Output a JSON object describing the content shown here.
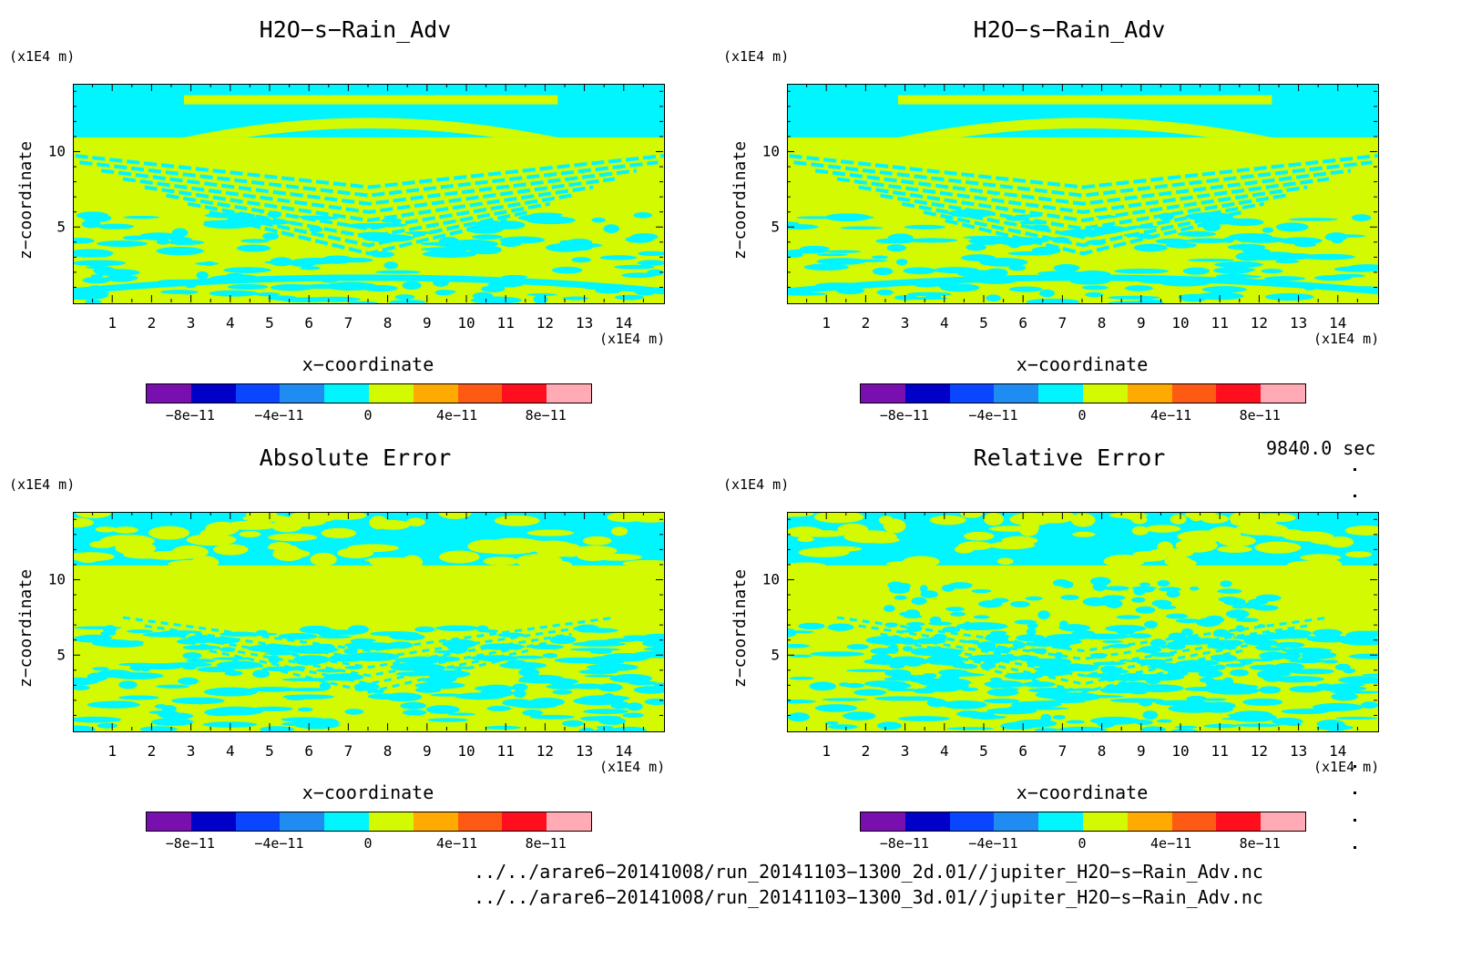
{
  "panels": [
    {
      "title": "H2O−s−Rain_Adv"
    },
    {
      "title": "H2O−s−Rain_Adv"
    },
    {
      "title": "Absolute Error"
    },
    {
      "title": "Relative Error"
    }
  ],
  "axes": {
    "z_unit": "(x1E4 m)",
    "x_unit": "(x1E4 m)",
    "ylabel": "z−coordinate",
    "xlabel": "x−coordinate",
    "x_ticks": [
      "1",
      "2",
      "3",
      "4",
      "5",
      "6",
      "7",
      "8",
      "9",
      "10",
      "11",
      "12",
      "13",
      "14"
    ],
    "y_ticks": [
      "10",
      "5"
    ]
  },
  "colorbar": {
    "colors": [
      "#7a0fb0",
      "#0000c8",
      "#0a46ff",
      "#1e8cf0",
      "#00f5ff",
      "#d3fa00",
      "#ffaa00",
      "#ff5a14",
      "#ff0f1e",
      "#ffaab4"
    ],
    "tick_labels": [
      "−8e−11",
      "−4e−11",
      "0",
      "4e−11",
      "8e−11"
    ]
  },
  "timestamp": "9840.0 sec",
  "file_paths": [
    "../../arare6−20141008/run_20141103−1300_2d.01//jupiter_H2O−s−Rain_Adv.nc",
    "../../arare6−20141008/run_20141103−1300_3d.01//jupiter_H2O−s−Rain_Adv.nc"
  ],
  "chart_data": [
    {
      "type": "heatmap",
      "title": "H2O−s−Rain_Adv",
      "xlabel": "x−coordinate",
      "ylabel": "z−coordinate",
      "xlim": [
        0,
        15
      ],
      "ylim": [
        0,
        14.5
      ],
      "x_unit": "(x1E4 m)",
      "z_unit": "(x1E4 m)",
      "colorbar_range": [
        -1e-10,
        1e-10
      ],
      "dominant_values": [
        "0 to 2e-11",
        "-2e-11 to 0"
      ]
    },
    {
      "type": "heatmap",
      "title": "H2O−s−Rain_Adv",
      "xlabel": "x−coordinate",
      "ylabel": "z−coordinate",
      "xlim": [
        0,
        15
      ],
      "ylim": [
        0,
        14.5
      ],
      "x_unit": "(x1E4 m)",
      "z_unit": "(x1E4 m)",
      "colorbar_range": [
        -1e-10,
        1e-10
      ],
      "dominant_values": [
        "0 to 2e-11",
        "-2e-11 to 0"
      ]
    },
    {
      "type": "heatmap",
      "title": "Absolute Error",
      "xlabel": "x−coordinate",
      "ylabel": "z−coordinate",
      "xlim": [
        0,
        15
      ],
      "ylim": [
        0,
        14.5
      ],
      "x_unit": "(x1E4 m)",
      "z_unit": "(x1E4 m)",
      "colorbar_range": [
        -1e-10,
        1e-10
      ],
      "dominant_values": [
        "0 to 2e-11",
        "-2e-11 to 0"
      ]
    },
    {
      "type": "heatmap",
      "title": "Relative Error",
      "xlabel": "x−coordinate",
      "ylabel": "z−coordinate",
      "xlim": [
        0,
        15
      ],
      "ylim": [
        0,
        14.5
      ],
      "x_unit": "(x1E4 m)",
      "z_unit": "(x1E4 m)",
      "colorbar_range": [
        -1e-10,
        1e-10
      ],
      "dominant_values": [
        "0 to 2e-11",
        "-2e-11 to 0"
      ]
    }
  ]
}
